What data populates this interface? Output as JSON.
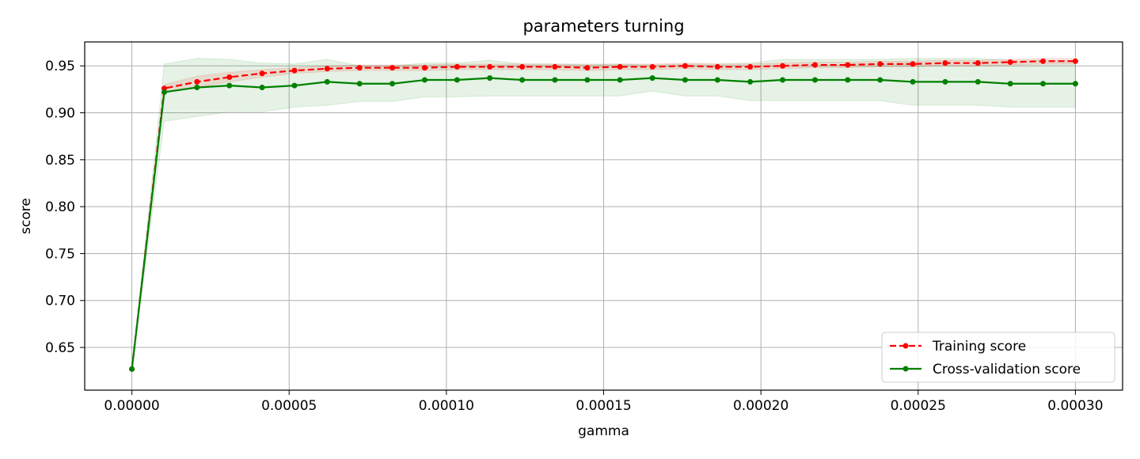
{
  "chart_data": {
    "type": "line",
    "title": "parameters turning",
    "xlabel": "gamma",
    "ylabel": "score",
    "xlim": [
      -1.5e-05,
      0.000315
    ],
    "ylim": [
      0.6045,
      0.9755
    ],
    "grid": true,
    "legend_position": "lower-right",
    "xticks": [
      0,
      5e-05,
      0.0001,
      0.00015,
      0.0002,
      0.00025,
      0.0003
    ],
    "xtick_labels": [
      "0.00000",
      "0.00005",
      "0.00010",
      "0.00015",
      "0.00020",
      "0.00025",
      "0.00030"
    ],
    "yticks": [
      0.65,
      0.7,
      0.75,
      0.8,
      0.85,
      0.9,
      0.95
    ],
    "ytick_labels": [
      "0.65",
      "0.70",
      "0.75",
      "0.80",
      "0.85",
      "0.90",
      "0.95"
    ],
    "x": [
      0,
      1.03e-05,
      2.07e-05,
      3.1e-05,
      4.14e-05,
      5.17e-05,
      6.21e-05,
      7.24e-05,
      8.28e-05,
      9.31e-05,
      0.0001034,
      0.0001138,
      0.0001241,
      0.0001345,
      0.0001448,
      0.0001552,
      0.0001655,
      0.0001759,
      0.0001862,
      0.0001966,
      0.0002069,
      0.0002172,
      0.0002276,
      0.0002379,
      0.0002483,
      0.0002586,
      0.000269,
      0.0002793,
      0.0002897,
      0.0003
    ],
    "series": [
      {
        "name": "Training score",
        "color": "#ff0000",
        "linestyle": "dashed",
        "marker": "dot",
        "values": [
          0.627,
          0.926,
          0.933,
          0.938,
          0.942,
          0.945,
          0.947,
          0.948,
          0.948,
          0.948,
          0.949,
          0.949,
          0.949,
          0.949,
          0.948,
          0.949,
          0.949,
          0.95,
          0.949,
          0.949,
          0.95,
          0.951,
          0.951,
          0.952,
          0.952,
          0.953,
          0.953,
          0.954,
          0.955,
          0.955
        ],
        "band_lower": [
          0.627,
          0.922,
          0.927,
          0.933,
          0.938,
          0.942,
          0.944,
          0.945,
          0.945,
          0.945,
          0.946,
          0.946,
          0.946,
          0.946,
          0.945,
          0.946,
          0.946,
          0.947,
          0.946,
          0.946,
          0.947,
          0.948,
          0.948,
          0.949,
          0.949,
          0.95,
          0.95,
          0.951,
          0.952,
          0.952
        ],
        "band_upper": [
          0.627,
          0.93,
          0.939,
          0.943,
          0.946,
          0.948,
          0.95,
          0.951,
          0.951,
          0.951,
          0.952,
          0.952,
          0.952,
          0.952,
          0.951,
          0.952,
          0.952,
          0.953,
          0.952,
          0.952,
          0.953,
          0.954,
          0.954,
          0.955,
          0.955,
          0.956,
          0.956,
          0.957,
          0.958,
          0.958
        ]
      },
      {
        "name": "Cross-validation score",
        "color": "#008000",
        "linestyle": "solid",
        "marker": "dot",
        "values": [
          0.627,
          0.922,
          0.927,
          0.929,
          0.927,
          0.929,
          0.933,
          0.931,
          0.931,
          0.935,
          0.935,
          0.937,
          0.935,
          0.935,
          0.935,
          0.935,
          0.937,
          0.935,
          0.935,
          0.933,
          0.935,
          0.935,
          0.935,
          0.935,
          0.933,
          0.933,
          0.933,
          0.931,
          0.931,
          0.931
        ],
        "band_lower": [
          0.627,
          0.891,
          0.896,
          0.901,
          0.901,
          0.906,
          0.908,
          0.912,
          0.912,
          0.917,
          0.917,
          0.918,
          0.918,
          0.918,
          0.918,
          0.918,
          0.923,
          0.918,
          0.918,
          0.913,
          0.913,
          0.913,
          0.913,
          0.913,
          0.908,
          0.908,
          0.908,
          0.906,
          0.906,
          0.906
        ],
        "band_upper": [
          0.627,
          0.952,
          0.958,
          0.957,
          0.953,
          0.952,
          0.957,
          0.95,
          0.95,
          0.953,
          0.953,
          0.956,
          0.952,
          0.952,
          0.952,
          0.952,
          0.951,
          0.952,
          0.952,
          0.953,
          0.957,
          0.957,
          0.957,
          0.957,
          0.958,
          0.958,
          0.958,
          0.956,
          0.956,
          0.956
        ]
      }
    ]
  }
}
